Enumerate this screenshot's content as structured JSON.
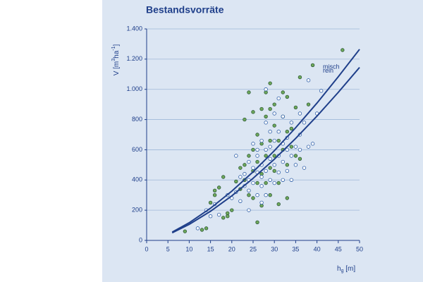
{
  "chart_data": {
    "type": "scatter",
    "title": "Bestandsvorräte",
    "y_label": {
      "main": "V [m",
      "sup1": "3",
      "mid": "ha",
      "sup2": "-1",
      "end": "]"
    },
    "x_label": {
      "main": "h",
      "sub": "g",
      "end": " [m]"
    },
    "xlim": [
      0,
      50
    ],
    "xticks": [
      0,
      5,
      10,
      15,
      20,
      25,
      30,
      35,
      40,
      45,
      50
    ],
    "ylim": [
      0,
      1400
    ],
    "yticks": [
      0,
      200,
      400,
      600,
      800,
      {
        "value": 1000,
        "label": "1.000"
      },
      {
        "value": 1200,
        "label": "1.200"
      },
      {
        "value": 1400,
        "label": "1.400"
      }
    ],
    "grid": true,
    "series": [
      {
        "color": "#6fa85a",
        "x": [
          9,
          13,
          14,
          15,
          16,
          16,
          17,
          18,
          18,
          19,
          19,
          20,
          21,
          22,
          22,
          23,
          23,
          23,
          24,
          24,
          24,
          25,
          25,
          25,
          25,
          26,
          26,
          26,
          26,
          27,
          27,
          27,
          28,
          28,
          28,
          28,
          29,
          29,
          29,
          29,
          30,
          30,
          30,
          30,
          31,
          31,
          32,
          32,
          32,
          33,
          33,
          33,
          34,
          34,
          35,
          35,
          36,
          36,
          38,
          39,
          46,
          31,
          33,
          27,
          29
        ],
        "values": [
          60,
          70,
          80,
          250,
          300,
          330,
          350,
          150,
          420,
          180,
          160,
          200,
          390,
          480,
          340,
          400,
          800,
          500,
          980,
          560,
          300,
          600,
          460,
          280,
          850,
          120,
          700,
          520,
          380,
          640,
          440,
          230,
          980,
          560,
          820,
          380,
          870,
          1040,
          660,
          300,
          900,
          760,
          460,
          560,
          660,
          380,
          980,
          600,
          820,
          720,
          950,
          500,
          740,
          620,
          560,
          880,
          540,
          1080,
          900,
          1160,
          1260,
          240,
          280,
          870,
          480
        ]
      },
      {
        "color": "#ffffff",
        "x": [
          12,
          14,
          15,
          16,
          17,
          19,
          20,
          21,
          21,
          22,
          22,
          23,
          23,
          24,
          24,
          24,
          25,
          25,
          25,
          26,
          26,
          26,
          26,
          27,
          27,
          27,
          27,
          28,
          28,
          28,
          28,
          29,
          29,
          29,
          29,
          30,
          30,
          30,
          30,
          31,
          31,
          31,
          32,
          32,
          32,
          32,
          33,
          33,
          33,
          34,
          34,
          34,
          35,
          35,
          36,
          36,
          37,
          37,
          38,
          38,
          39,
          40,
          41,
          36,
          31,
          28,
          27,
          24
        ],
        "values": [
          80,
          200,
          160,
          240,
          170,
          300,
          280,
          320,
          560,
          420,
          260,
          360,
          440,
          330,
          520,
          400,
          640,
          380,
          480,
          600,
          450,
          300,
          560,
          500,
          660,
          360,
          420,
          780,
          600,
          460,
          300,
          720,
          540,
          400,
          620,
          660,
          500,
          380,
          840,
          720,
          560,
          450,
          640,
          520,
          400,
          820,
          600,
          460,
          680,
          560,
          780,
          400,
          620,
          500,
          700,
          600,
          480,
          780,
          620,
          1060,
          640,
          840,
          990,
          840,
          940,
          1000,
          250,
          200
        ]
      }
    ],
    "lines": [
      {
        "name": "misch",
        "color": "#1f3f8a",
        "x": [
          6,
          10,
          15,
          20,
          25,
          30,
          35,
          40,
          45,
          50
        ],
        "values": [
          55,
          117,
          213,
          326,
          454,
          594,
          746,
          909,
          1083,
          1265
        ]
      },
      {
        "name": "rein",
        "color": "#1f3f8a",
        "x": [
          6,
          10,
          15,
          20,
          25,
          30,
          35,
          40,
          45,
          50
        ],
        "values": [
          50,
          106,
          193,
          295,
          411,
          538,
          675,
          823,
          980,
          1145
        ]
      }
    ]
  }
}
